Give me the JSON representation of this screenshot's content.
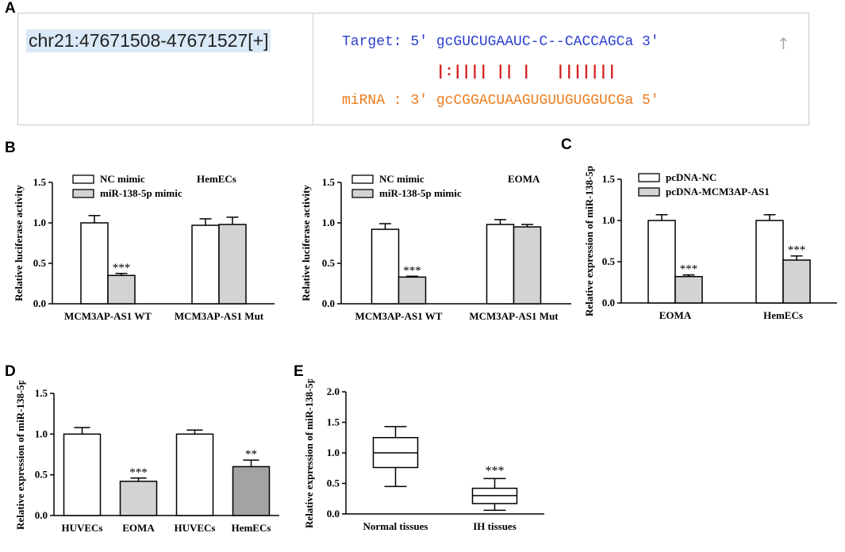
{
  "panels": {
    "A": "A",
    "B": "B",
    "C": "C",
    "D": "D",
    "E": "E"
  },
  "sequence": {
    "coordinate": "chr21:47671508-47671527[+]",
    "target": "Target: 5' gcGUCUGAAUC-C--CACCAGCa 3'",
    "pairing": "           |:|||| || |   |||||||",
    "mirna": "miRNA : 3' gcCGGACUAAGUGUUGUGGUCGa 5'",
    "arrow_icon": "↑"
  },
  "colors": {
    "white_bar": "#ffffff",
    "light_bar": "#d3d3d3",
    "dark_bar": "#a3a3a3",
    "target_text": "#2a3fcf",
    "pairing_text": "#d21f1f",
    "mirna_text": "#ec7c1e"
  },
  "chart_data": [
    {
      "id": "B1",
      "type": "bar",
      "title": "",
      "ylabel": "Relative luciferase activity",
      "xlabel": "",
      "ylim": [
        0,
        1.5
      ],
      "yticks": [
        "0.0",
        "0.5",
        "1.0",
        "1.5"
      ],
      "groups": [
        "MCM3AP-AS1 WT",
        "MCM3AP-AS1 Mut"
      ],
      "legend_title": "HemECs",
      "legend": [
        {
          "name": "NC mimic",
          "fill": "white"
        },
        {
          "name": "miR-138-5p mimic",
          "fill": "light"
        }
      ],
      "bars": [
        {
          "group": 0,
          "series": 0,
          "value": 1.0,
          "err": 0.09,
          "sig": ""
        },
        {
          "group": 0,
          "series": 1,
          "value": 0.35,
          "err": 0.025,
          "sig": "***"
        },
        {
          "group": 1,
          "series": 0,
          "value": 0.97,
          "err": 0.08,
          "sig": ""
        },
        {
          "group": 1,
          "series": 1,
          "value": 0.98,
          "err": 0.09,
          "sig": ""
        }
      ]
    },
    {
      "id": "B2",
      "type": "bar",
      "title": "",
      "ylabel": "Relative luciferase activity",
      "xlabel": "",
      "ylim": [
        0,
        1.5
      ],
      "yticks": [
        "0.0",
        "0.5",
        "1.0",
        "1.5"
      ],
      "groups": [
        "MCM3AP-AS1 WT",
        "MCM3AP-AS1 Mut"
      ],
      "legend_title": "EOMA",
      "legend": [
        {
          "name": "NC mimic",
          "fill": "white"
        },
        {
          "name": "miR-138-5p mimic",
          "fill": "light"
        }
      ],
      "bars": [
        {
          "group": 0,
          "series": 0,
          "value": 0.92,
          "err": 0.07,
          "sig": ""
        },
        {
          "group": 0,
          "series": 1,
          "value": 0.33,
          "err": 0.01,
          "sig": "***"
        },
        {
          "group": 1,
          "series": 0,
          "value": 0.98,
          "err": 0.06,
          "sig": ""
        },
        {
          "group": 1,
          "series": 1,
          "value": 0.95,
          "err": 0.03,
          "sig": ""
        }
      ]
    },
    {
      "id": "C",
      "type": "bar",
      "title": "",
      "ylabel": "Relative expression of miR-138-5p",
      "xlabel": "",
      "ylim": [
        0,
        1.5
      ],
      "yticks": [
        "0.0",
        "0.5",
        "1.0",
        "1.5"
      ],
      "groups": [
        "EOMA",
        "HemECs"
      ],
      "legend_title": "",
      "legend": [
        {
          "name": "pcDNA-NC",
          "fill": "white"
        },
        {
          "name": "pcDNA-MCM3AP-AS1",
          "fill": "light"
        }
      ],
      "bars": [
        {
          "group": 0,
          "series": 0,
          "value": 1.0,
          "err": 0.07,
          "sig": ""
        },
        {
          "group": 0,
          "series": 1,
          "value": 0.32,
          "err": 0.02,
          "sig": "***"
        },
        {
          "group": 1,
          "series": 0,
          "value": 1.0,
          "err": 0.07,
          "sig": ""
        },
        {
          "group": 1,
          "series": 1,
          "value": 0.52,
          "err": 0.05,
          "sig": "***"
        }
      ]
    },
    {
      "id": "D",
      "type": "bar",
      "title": "",
      "ylabel": "Relative expression of miR-138-5p",
      "xlabel": "",
      "ylim": [
        0,
        1.5
      ],
      "yticks": [
        "0.0",
        "0.5",
        "1.0",
        "1.5"
      ],
      "categories": [
        "HUVECs",
        "EOMA",
        "HUVECs",
        "HemECs"
      ],
      "bars": [
        {
          "value": 1.0,
          "err": 0.08,
          "fill": "white",
          "sig": ""
        },
        {
          "value": 0.42,
          "err": 0.04,
          "fill": "light",
          "sig": "***"
        },
        {
          "value": 1.0,
          "err": 0.05,
          "fill": "white",
          "sig": ""
        },
        {
          "value": 0.6,
          "err": 0.08,
          "fill": "dark",
          "sig": "**"
        }
      ]
    },
    {
      "id": "E",
      "type": "box",
      "title": "",
      "ylabel": "Relative expression of miR-138-5p",
      "xlabel": "",
      "ylim": [
        0,
        2.0
      ],
      "yticks": [
        "0.0",
        "0.5",
        "1.0",
        "1.5",
        "2.0"
      ],
      "categories": [
        "Normal tissues",
        "IH tissues"
      ],
      "boxes": [
        {
          "min": 0.45,
          "q1": 0.76,
          "median": 1.0,
          "q3": 1.25,
          "max": 1.43,
          "sig": ""
        },
        {
          "min": 0.06,
          "q1": 0.17,
          "median": 0.3,
          "q3": 0.42,
          "max": 0.58,
          "sig": "***"
        }
      ]
    }
  ]
}
